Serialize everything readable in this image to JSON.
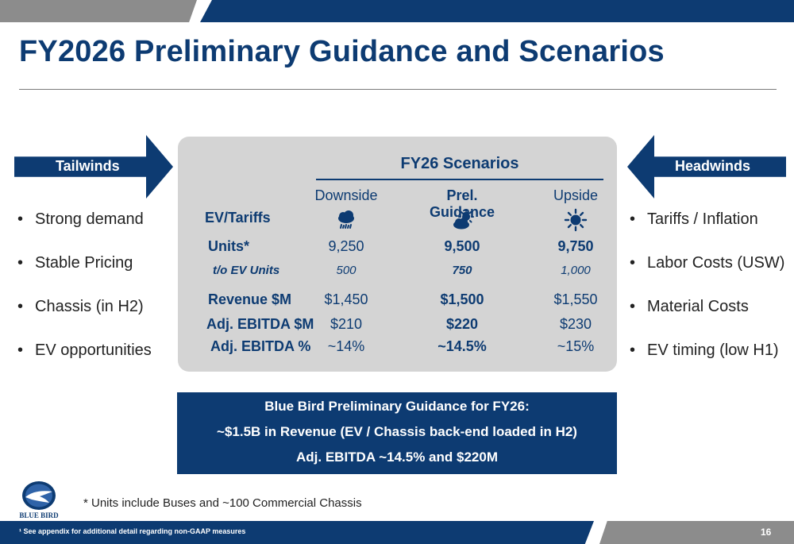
{
  "title": "FY2026 Preliminary Guidance and Scenarios",
  "tailwinds": {
    "label": "Tailwinds",
    "items": [
      "Strong demand",
      "Stable Pricing",
      "Chassis (in H2)",
      "EV opportunities"
    ]
  },
  "headwinds": {
    "label": "Headwinds",
    "items": [
      "Tariffs / Inflation",
      "Labor Costs (USW)",
      "Material Costs",
      "EV timing (low H1)"
    ]
  },
  "scenarios": {
    "title": "FY26 Scenarios",
    "columns": [
      "Downside",
      "Prel. Guidance",
      "Upside"
    ],
    "icons": [
      "rain-cloud-icon",
      "partly-sunny-icon",
      "sun-icon"
    ],
    "rows": {
      "ev_tariffs": {
        "label": "EV/Tariffs"
      },
      "units": {
        "label": "Units*",
        "values": [
          "9,250",
          "9,500",
          "9,750"
        ]
      },
      "ev_units": {
        "label": "t/o EV Units",
        "values": [
          "500",
          "750",
          "1,000"
        ]
      },
      "revenue": {
        "label": "Revenue $M",
        "values": [
          "$1,450",
          "$1,500",
          "$1,550"
        ]
      },
      "ebitda": {
        "label": "Adj. EBITDA $M",
        "values": [
          "$210",
          "$220",
          "$230"
        ]
      },
      "ebitda_pct": {
        "label": "Adj. EBITDA %",
        "values": [
          "~14%",
          "~14.5%",
          "~15%"
        ]
      }
    }
  },
  "callout": {
    "line1": "Blue Bird Preliminary Guidance for FY26:",
    "line2": "~$1.5B in Revenue (EV / Chassis back-end loaded in H2)",
    "line3": "Adj. EBITDA ~14.5% and $220M"
  },
  "footnote": "* Units include Buses and ~100 Commercial Chassis",
  "logo_text": "BLUE BIRD",
  "bottom_note": "¹ See appendix for additional detail regarding non-GAAP measures",
  "page_number": "16",
  "colors": {
    "brand_blue": "#0d3b72",
    "panel_gray": "#d4d4d4",
    "bar_gray": "#8c8c8c"
  }
}
